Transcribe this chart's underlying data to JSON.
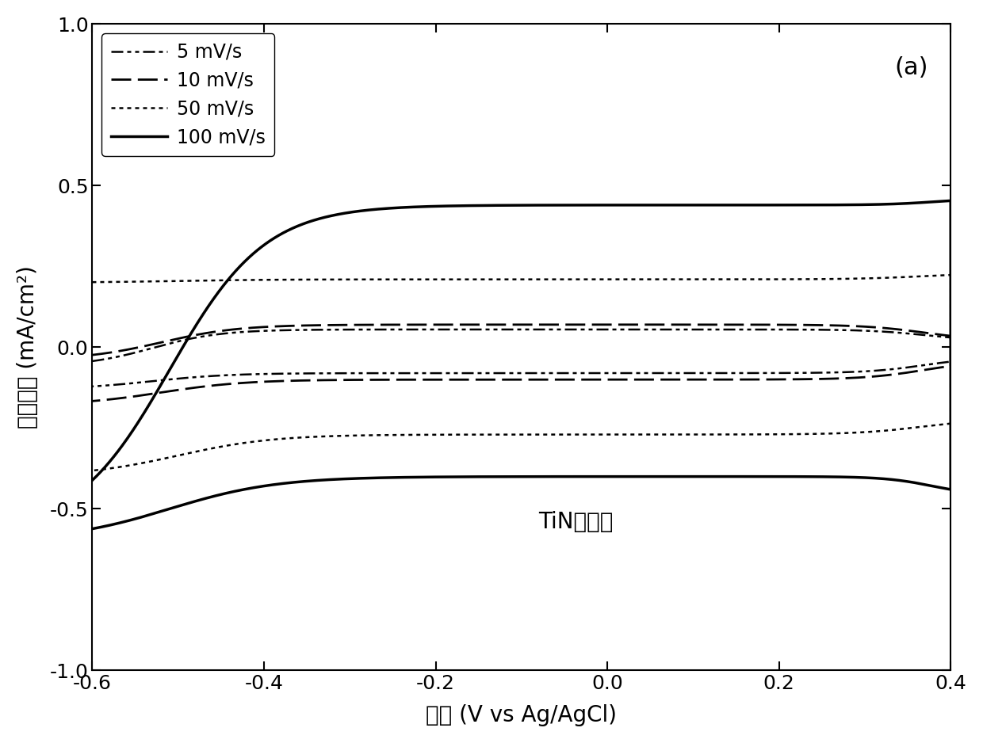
{
  "title": "(a)",
  "xlabel": "电压 (V vs Ag/AgCl)",
  "ylabel": "电流密度 (mA/cm²)",
  "annotation": "TiN单电极",
  "xlim": [
    -0.6,
    0.4
  ],
  "ylim": [
    -1.0,
    1.0
  ],
  "xticks": [
    -0.6,
    -0.4,
    -0.2,
    0.0,
    0.2,
    0.4
  ],
  "yticks": [
    -1.0,
    -0.5,
    0.0,
    0.5,
    1.0
  ],
  "background_color": "#ffffff",
  "legend_entries": [
    "5 mV/s",
    "10 mV/s",
    "50 mV/s",
    "100 mV/s"
  ]
}
